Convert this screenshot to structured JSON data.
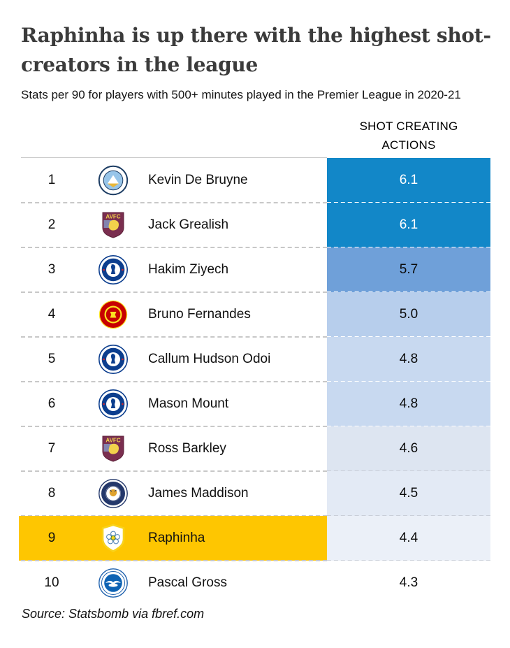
{
  "page": {
    "title": "Raphinha is up there with the highest shot-creators in the league",
    "subtitle": "Stats per 90 for players with 500+ minutes played in the Premier League in 2020-21",
    "source": "Source: Statsbomb via fbref.com"
  },
  "table": {
    "value_header": "SHOT CREATING ACTIONS"
  },
  "colors": {
    "highlight_yellow": "#FEC601",
    "strong_blue": "#1287C8",
    "separator_gray": "#C8C8C8",
    "title_text": "#3B3B3B"
  },
  "chart_data": {
    "type": "table",
    "title": "Raphinha is up there with the highest shot-creators in the league",
    "subtitle": "Stats per 90 for players with 500+ minutes played in the Premier League in 2020-21",
    "value_column": "SHOT CREATING ACTIONS",
    "highlighted_player": "Raphinha",
    "rows": [
      {
        "rank": "1",
        "player": "Kevin De Bruyne",
        "club": "Manchester City",
        "badge_icon": "man-city-badge-icon",
        "value": "6.1",
        "cell_color": "#1287C8",
        "value_text_color": "#FFFFFF",
        "highlighted": false
      },
      {
        "rank": "2",
        "player": "Jack Grealish",
        "club": "Aston Villa",
        "badge_icon": "aston-villa-badge-icon",
        "value": "6.1",
        "cell_color": "#1287C8",
        "value_text_color": "#FFFFFF",
        "highlighted": false
      },
      {
        "rank": "3",
        "player": "Hakim Ziyech",
        "club": "Chelsea",
        "badge_icon": "chelsea-badge-icon",
        "value": "5.7",
        "cell_color": "#6FA0D9",
        "value_text_color": "#0B0B0B",
        "highlighted": false
      },
      {
        "rank": "4",
        "player": "Bruno Fernandes",
        "club": "Manchester United",
        "badge_icon": "man-utd-badge-icon",
        "value": "5.0",
        "cell_color": "#B7CEEC",
        "value_text_color": "#0B0B0B",
        "highlighted": false
      },
      {
        "rank": "5",
        "player": "Callum Hudson Odoi",
        "club": "Chelsea",
        "badge_icon": "chelsea-badge-icon",
        "value": "4.8",
        "cell_color": "#C8D9F0",
        "value_text_color": "#0B0B0B",
        "highlighted": false
      },
      {
        "rank": "6",
        "player": "Mason Mount",
        "club": "Chelsea",
        "badge_icon": "chelsea-badge-icon",
        "value": "4.8",
        "cell_color": "#C8D9F0",
        "value_text_color": "#0B0B0B",
        "highlighted": false
      },
      {
        "rank": "7",
        "player": "Ross Barkley",
        "club": "Aston Villa",
        "badge_icon": "aston-villa-badge-icon",
        "value": "4.6",
        "cell_color": "#DDE5F1",
        "value_text_color": "#0B0B0B",
        "highlighted": false
      },
      {
        "rank": "8",
        "player": "James Maddison",
        "club": "Leicester City",
        "badge_icon": "leicester-badge-icon",
        "value": "4.5",
        "cell_color": "#E3EAF5",
        "value_text_color": "#0B0B0B",
        "highlighted": false
      },
      {
        "rank": "9",
        "player": "Raphinha",
        "club": "Leeds United",
        "badge_icon": "leeds-badge-icon",
        "value": "4.4",
        "cell_color": "#EBF0F8",
        "value_text_color": "#0B0B0B",
        "highlighted": true
      },
      {
        "rank": "10",
        "player": "Pascal Gross",
        "club": "Brighton & Hove Albion",
        "badge_icon": "brighton-badge-icon",
        "value": "4.3",
        "cell_color": "#FFFFFF",
        "value_text_color": "#0B0B0B",
        "highlighted": false
      }
    ]
  }
}
